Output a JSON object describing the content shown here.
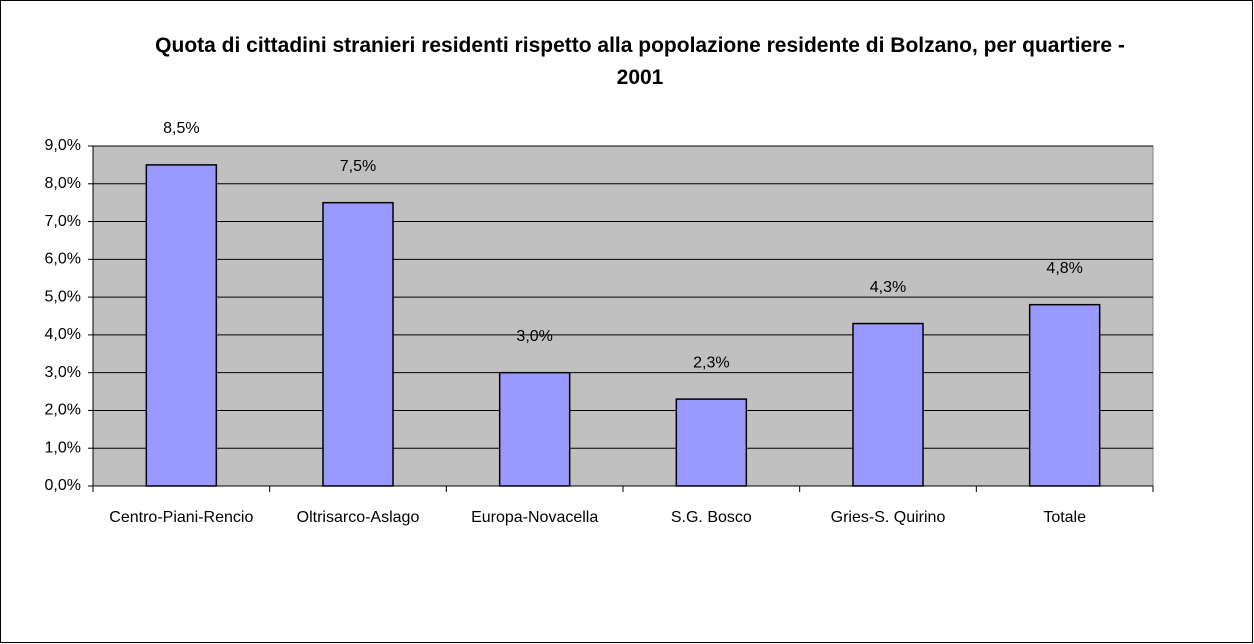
{
  "chart_data": {
    "type": "bar",
    "title": "Quota di cittadini stranieri residenti rispetto alla popolazione residente di Bolzano, per quartiere - 2001",
    "categories": [
      "Centro-Piani-Rencio",
      "Oltrisarco-Aslago",
      "Europa-Novacella",
      "S.G. Bosco",
      "Gries-S. Quirino",
      "Totale"
    ],
    "values": [
      8.5,
      7.5,
      3.0,
      2.3,
      4.3,
      4.8
    ],
    "value_labels": [
      "8,5%",
      "7,5%",
      "3,0%",
      "2,3%",
      "4,3%",
      "4,8%"
    ],
    "color": "#9999ff",
    "ylim": [
      0,
      9
    ],
    "yticks": [
      {
        "value": 0,
        "label": "0,0%"
      },
      {
        "value": 1,
        "label": "1,0%"
      },
      {
        "value": 2,
        "label": "2,0%"
      },
      {
        "value": 3,
        "label": "3,0%"
      },
      {
        "value": 4,
        "label": "4,0%"
      },
      {
        "value": 5,
        "label": "5,0%"
      },
      {
        "value": 6,
        "label": "6,0%"
      },
      {
        "value": 7,
        "label": "7,0%"
      },
      {
        "value": 8,
        "label": "8,0%"
      },
      {
        "value": 9,
        "label": "9,0%"
      }
    ],
    "grid": true
  }
}
